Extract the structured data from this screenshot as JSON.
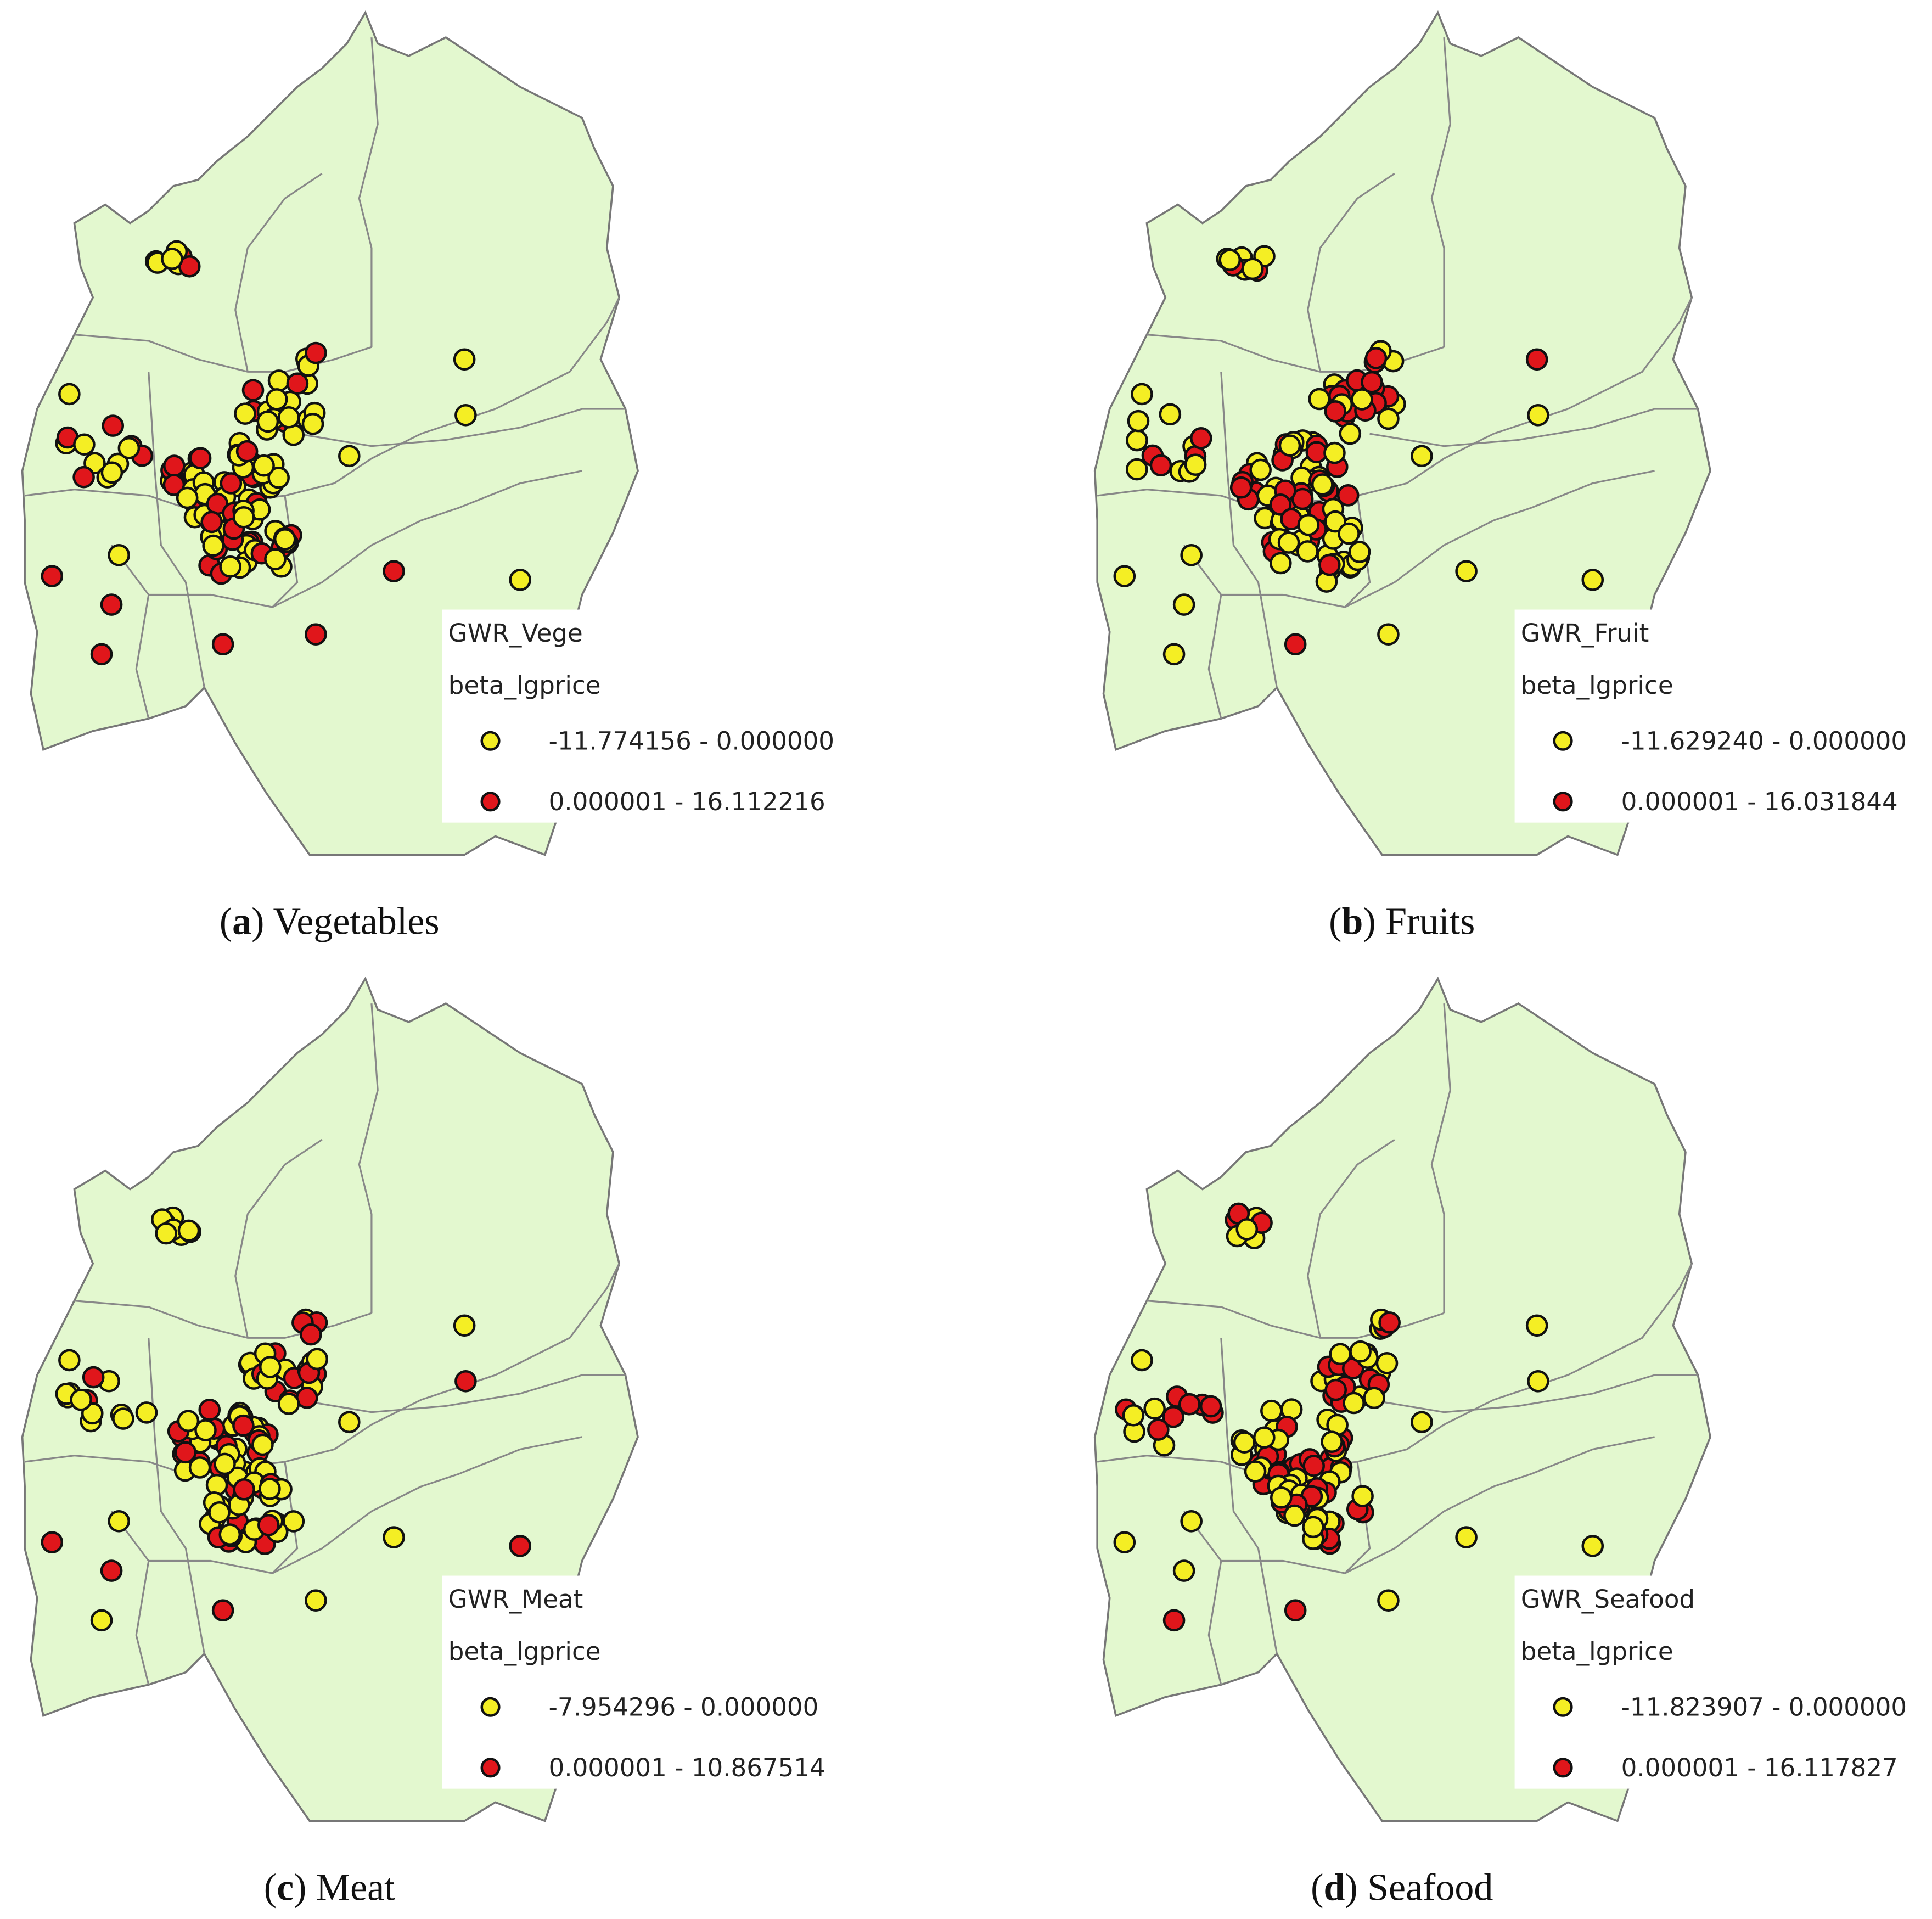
{
  "panels": [
    {
      "caption": [
        "(",
        "a",
        ") Vegetables"
      ],
      "legend_title": "GWR_Vege",
      "legend_subtitle": "beta_lgprice",
      "classes": [
        {
          "label": "-11.774156 - 0.000000",
          "color": "#f4ee24"
        },
        {
          "label": "0.000001 - 16.112216",
          "color": "#e0161b"
        }
      ]
    },
    {
      "caption": [
        "(",
        "b",
        ") Fruits"
      ],
      "legend_title": "GWR_Fruit",
      "legend_subtitle": "beta_lgprice",
      "classes": [
        {
          "label": "-11.629240 - 0.000000",
          "color": "#f4ee24"
        },
        {
          "label": "0.000001 - 16.031844",
          "color": "#e0161b"
        }
      ]
    },
    {
      "caption": [
        "(",
        "c",
        ") Meat"
      ],
      "legend_title": "GWR_Meat",
      "legend_subtitle": "beta_lgprice",
      "classes": [
        {
          "label": "-7.954296 - 0.000000",
          "color": "#f4ee24"
        },
        {
          "label": "0.000001 - 10.867514",
          "color": "#e0161b"
        }
      ]
    },
    {
      "caption": [
        "(",
        "d",
        ") Seafood"
      ],
      "legend_title": "GWR_Seafood",
      "legend_subtitle": "beta_lgprice",
      "classes": [
        {
          "label": "-11.823907 - 0.000000",
          "color": "#f4ee24"
        },
        {
          "label": "0.000001 - 16.117827",
          "color": "#e0161b"
        }
      ]
    }
  ]
}
